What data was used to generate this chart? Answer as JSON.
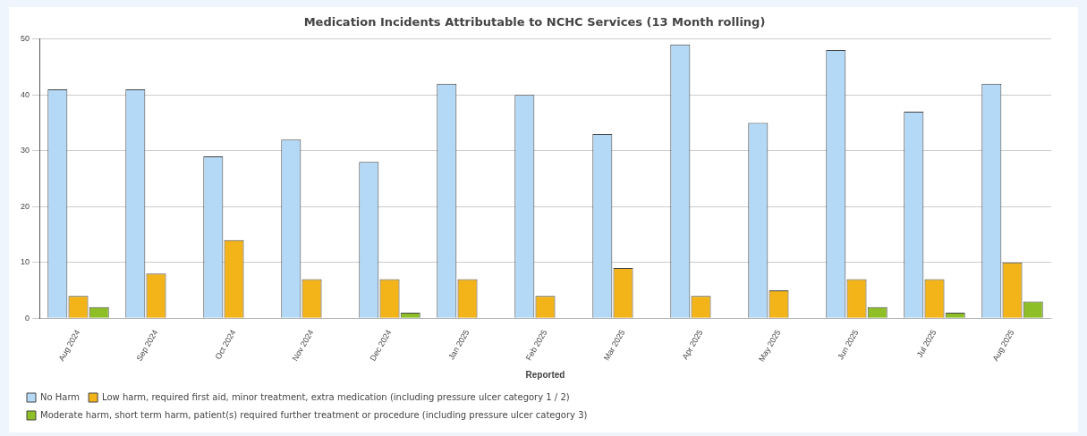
{
  "chart_data": {
    "type": "bar",
    "title": "Medication Incidents Attributable to NCHC Services (13 Month rolling)",
    "xlabel": "Reported",
    "categories": [
      "Aug 2024",
      "Sep 2024",
      "Oct 2024",
      "Nov 2024",
      "Dec 2024",
      "Jan 2025",
      "Feb 2025",
      "Mar 2025",
      "Apr 2025",
      "May 2025",
      "Jun 2025",
      "Jul 2025",
      "Aug 2025"
    ],
    "series": [
      {
        "name": "No Harm",
        "color": "#b3d9f7",
        "values": [
          41,
          41,
          29,
          32,
          28,
          42,
          40,
          33,
          49,
          35,
          48,
          37,
          42
        ]
      },
      {
        "name": "Low harm, required first aid, minor treatment, extra medication (including pressure ulcer category 1 / 2)",
        "color": "#f2b418",
        "values": [
          4,
          8,
          14,
          7,
          7,
          7,
          4,
          9,
          4,
          5,
          7,
          7,
          10
        ]
      },
      {
        "name": "Moderate harm, short term harm, patient(s) required further treatment or procedure (including pressure ulcer category 3)",
        "color": "#8fbf26",
        "values": [
          2,
          0,
          0,
          0,
          1,
          0,
          0,
          0,
          0,
          0,
          2,
          1,
          3
        ]
      }
    ],
    "ylim": [
      0,
      50
    ],
    "yticks": [
      0,
      10,
      20,
      30,
      40,
      50
    ],
    "grid": "y",
    "legend": "bottom"
  }
}
